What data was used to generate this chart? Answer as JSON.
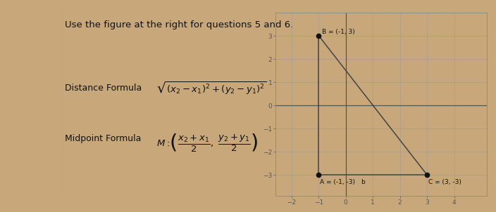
{
  "title": "Use the figure at the right for questions 5 and 6.",
  "distance_label": "Distance Formula",
  "distance_formula": "$\\sqrt{(x_2-x_1)^2+(y_2-y_1)^2}$",
  "midpoint_label": "Midpoint Formula",
  "midpoint_formula": "$M:\\!\\left(\\dfrac{x_2+x_1}{2},\\ \\dfrac{y_2+y_1}{2}\\right)$",
  "points": {
    "A": [
      -1,
      -3
    ],
    "B": [
      -1,
      3
    ],
    "C": [
      3,
      -3
    ]
  },
  "point_labels": {
    "A": "A = (-1, -3)",
    "B": "B = (-1, 3)",
    "C": "C = (3, -3)"
  },
  "lines": [
    [
      [
        -1,
        -3
      ],
      [
        -1,
        3
      ]
    ],
    [
      [
        -1,
        -3
      ],
      [
        3,
        -3
      ]
    ],
    [
      [
        -1,
        3
      ],
      [
        3,
        -3
      ]
    ]
  ],
  "xlim": [
    -2.6,
    5.2
  ],
  "ylim": [
    -3.9,
    4.0
  ],
  "xticks": [
    -2,
    -1,
    0,
    1,
    2,
    3,
    4
  ],
  "yticks": [
    -3,
    -2,
    -1,
    0,
    1,
    2,
    3
  ],
  "paper_color": "#f0eeea",
  "graph_bg": "#dddbd5",
  "wood_color": "#c8a87a",
  "line_color": "#444444",
  "grid_color": "#999999",
  "point_color": "#111111",
  "axis_color": "#555555",
  "text_color": "#111111"
}
